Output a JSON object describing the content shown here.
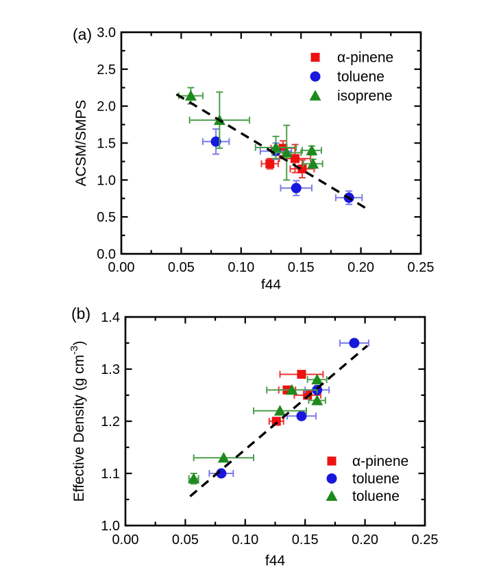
{
  "figure": {
    "background": "#ffffff"
  },
  "chart_data": [
    {
      "id": "chart-a",
      "type": "scatter",
      "panel_label": "(a)",
      "xlabel": "f44",
      "ylabel": "ACSM/SMPS",
      "xlim": [
        0,
        0.25
      ],
      "ylim": [
        0,
        3.0
      ],
      "grid": false,
      "legend_position": "upper-right-inside",
      "x_ticks": [
        {
          "v": 0.0,
          "label": "0.00"
        },
        {
          "v": 0.05,
          "label": "0.05"
        },
        {
          "v": 0.1,
          "label": "0.10"
        },
        {
          "v": 0.15,
          "label": "0.15"
        },
        {
          "v": 0.2,
          "label": "0.20"
        },
        {
          "v": 0.25,
          "label": "0.25"
        }
      ],
      "y_ticks": [
        {
          "v": 0.0,
          "label": "0.0"
        },
        {
          "v": 0.5,
          "label": "0.5"
        },
        {
          "v": 1.0,
          "label": "1.0"
        },
        {
          "v": 1.5,
          "label": "1.5"
        },
        {
          "v": 2.0,
          "label": "2.0"
        },
        {
          "v": 2.5,
          "label": "2.5"
        },
        {
          "v": 3.0,
          "label": "3.0"
        }
      ],
      "x_minor": [
        0.025,
        0.075,
        0.125,
        0.175,
        0.225
      ],
      "y_minor": [
        0.25,
        0.75,
        1.25,
        1.75,
        2.25,
        2.75
      ],
      "fit_line": {
        "style": "dashed",
        "x1": 0.046,
        "y1": 2.16,
        "x2": 0.204,
        "y2": 0.62
      },
      "series": [
        {
          "name": "alpha-pinene",
          "label": "α-pinene",
          "marker": "square",
          "color": "#ee1111",
          "error_color": "#ee3333",
          "points": [
            {
              "x": 0.124,
              "y": 1.22,
              "xe": 0.007,
              "ye": 0.07
            },
            {
              "x": 0.135,
              "y": 1.43,
              "xe": 0.01,
              "ye": 0.1
            },
            {
              "x": 0.145,
              "y": 1.29,
              "xe": 0.013,
              "ye": 0.19
            },
            {
              "x": 0.151,
              "y": 1.15,
              "xe": 0.01,
              "ye": 0.12
            }
          ]
        },
        {
          "name": "toluene",
          "label": "toluene",
          "marker": "circle",
          "color": "#1717dd",
          "error_color": "#7b7be8",
          "points": [
            {
              "x": 0.079,
              "y": 1.52,
              "xe": 0.011,
              "ye": 0.17
            },
            {
              "x": 0.129,
              "y": 1.39,
              "xe": 0.013,
              "ye": 0.11
            },
            {
              "x": 0.146,
              "y": 0.89,
              "xe": 0.013,
              "ye": 0.1
            },
            {
              "x": 0.19,
              "y": 0.76,
              "xe": 0.011,
              "ye": 0.09
            }
          ]
        },
        {
          "name": "isoprene",
          "label": "isoprene",
          "marker": "triangle",
          "color": "#1e8a1e",
          "error_color": "#4d9e4d",
          "points": [
            {
              "x": 0.058,
              "y": 2.14,
              "xe": 0.01,
              "ye": 0.11
            },
            {
              "x": 0.082,
              "y": 1.81,
              "xe": 0.025,
              "ye": 0.38
            },
            {
              "x": 0.129,
              "y": 1.44,
              "xe": 0.017,
              "ye": 0.15
            },
            {
              "x": 0.138,
              "y": 1.37,
              "xe": 0.012,
              "ye": 0.37
            },
            {
              "x": 0.159,
              "y": 1.4,
              "xe": 0.008,
              "ye": 0.06
            },
            {
              "x": 0.16,
              "y": 1.22,
              "xe": 0.008,
              "ye": 0.06
            }
          ]
        }
      ]
    },
    {
      "id": "chart-b",
      "type": "scatter",
      "panel_label": "(b)",
      "xlabel": "f44",
      "ylabel": {
        "text": "Effective Density (g cm",
        "sup": "-3",
        "post": ")"
      },
      "xlim": [
        0,
        0.25
      ],
      "ylim": [
        1.0,
        1.4
      ],
      "grid": false,
      "legend_position": "lower-right-inside",
      "x_ticks": [
        {
          "v": 0.0,
          "label": "0.00"
        },
        {
          "v": 0.05,
          "label": "0.05"
        },
        {
          "v": 0.1,
          "label": "0.10"
        },
        {
          "v": 0.15,
          "label": "0.15"
        },
        {
          "v": 0.2,
          "label": "0.20"
        },
        {
          "v": 0.25,
          "label": "0.25"
        }
      ],
      "y_ticks": [
        {
          "v": 1.0,
          "label": "1.0"
        },
        {
          "v": 1.1,
          "label": "1.1"
        },
        {
          "v": 1.2,
          "label": "1.2"
        },
        {
          "v": 1.3,
          "label": "1.3"
        },
        {
          "v": 1.4,
          "label": "1.4"
        }
      ],
      "x_minor": [
        0.025,
        0.075,
        0.125,
        0.175,
        0.225
      ],
      "y_minor": [
        1.05,
        1.15,
        1.25,
        1.35
      ],
      "fit_line": {
        "style": "dashed",
        "x1": 0.054,
        "y1": 1.056,
        "x2": 0.202,
        "y2": 1.345
      },
      "series": [
        {
          "name": "alpha-pinene",
          "label": "α-pinene",
          "marker": "square",
          "color": "#ee1111",
          "error_color": "#ee3333",
          "points": [
            {
              "x": 0.147,
              "y": 1.29,
              "xe": 0.018,
              "ye": 0
            },
            {
              "x": 0.135,
              "y": 1.26,
              "xe": 0.007,
              "ye": 0
            },
            {
              "x": 0.152,
              "y": 1.25,
              "xe": 0.011,
              "ye": 0
            },
            {
              "x": 0.126,
              "y": 1.2,
              "xe": 0.006,
              "ye": 0
            }
          ]
        },
        {
          "name": "toluene",
          "label": "toluene",
          "marker": "circle",
          "color": "#1717dd",
          "error_color": "#7b7be8",
          "points": [
            {
              "x": 0.191,
              "y": 1.35,
              "xe": 0.012,
              "ye": 0
            },
            {
              "x": 0.16,
              "y": 1.26,
              "xe": 0.01,
              "ye": 0
            },
            {
              "x": 0.147,
              "y": 1.21,
              "xe": 0.012,
              "ye": 0
            },
            {
              "x": 0.08,
              "y": 1.1,
              "xe": 0.01,
              "ye": 0
            }
          ]
        },
        {
          "name": "toluene-triangles",
          "label": "toluene",
          "marker": "triangle",
          "color": "#1e8a1e",
          "error_color": "#4d9e4d",
          "points": [
            {
              "x": 0.16,
              "y": 1.28,
              "xe": 0.008,
              "ye": 0
            },
            {
              "x": 0.139,
              "y": 1.26,
              "xe": 0.021,
              "ye": 0
            },
            {
              "x": 0.16,
              "y": 1.24,
              "xe": 0.007,
              "ye": 0
            },
            {
              "x": 0.129,
              "y": 1.22,
              "xe": 0.022,
              "ye": 0
            },
            {
              "x": 0.082,
              "y": 1.13,
              "xe": 0.025,
              "ye": 0
            },
            {
              "x": 0.057,
              "y": 1.09,
              "xe": 0.004,
              "ye": 0.01
            }
          ]
        }
      ]
    }
  ]
}
